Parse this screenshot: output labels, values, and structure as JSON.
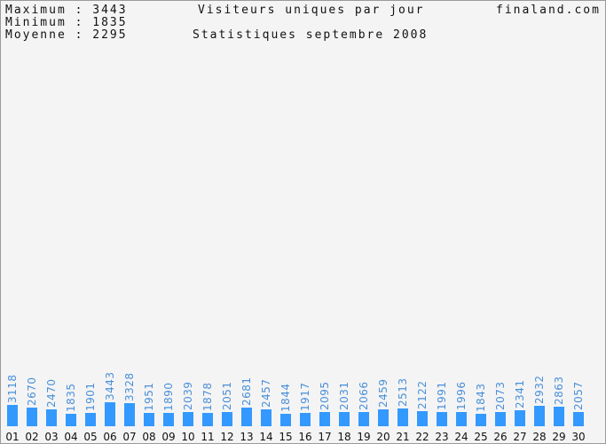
{
  "stats": {
    "max_label": "Maximum",
    "max_value": "3443",
    "min_label": "Minimum",
    "min_value": "1835",
    "avg_label": "Moyenne",
    "avg_value": "2295",
    "separator": ":"
  },
  "header": {
    "title": "Visiteurs uniques par jour",
    "subtitle": "Statistiques septembre 2008",
    "site": "finaland.com"
  },
  "colors": {
    "bar": "#3399ff",
    "value_text": "#4a90d9",
    "background": "#f4f4f4"
  },
  "chart_data": {
    "type": "bar",
    "title": "Visiteurs uniques par jour",
    "subtitle": "Statistiques septembre 2008",
    "categories": [
      "01",
      "02",
      "03",
      "04",
      "05",
      "06",
      "07",
      "08",
      "09",
      "10",
      "11",
      "12",
      "13",
      "14",
      "15",
      "16",
      "17",
      "18",
      "19",
      "20",
      "21",
      "22",
      "23",
      "24",
      "25",
      "26",
      "27",
      "28",
      "29",
      "30"
    ],
    "values": [
      3118,
      2670,
      2470,
      1835,
      1901,
      3443,
      3328,
      1951,
      1890,
      2039,
      1878,
      2051,
      2681,
      2457,
      1844,
      1917,
      2095,
      2031,
      2066,
      2459,
      2513,
      2122,
      1991,
      1996,
      1843,
      2073,
      2341,
      2932,
      2863,
      2057
    ],
    "grid": false,
    "legend": "none"
  }
}
